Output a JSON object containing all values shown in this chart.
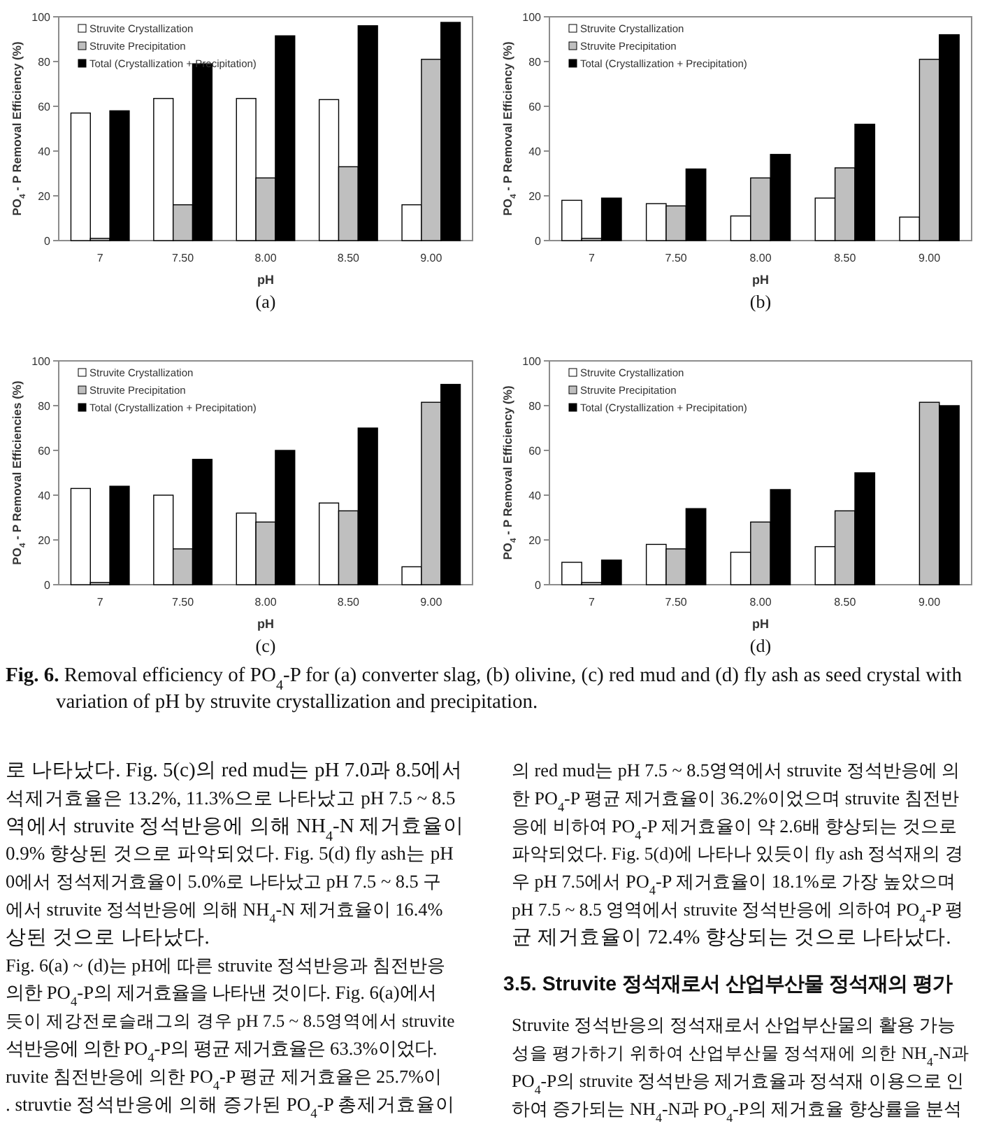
{
  "chart_data": [
    {
      "type": "bar",
      "xlabel": "pH",
      "ylabel": "PO$_{4}$ - P Removal Efficiency (%)",
      "categories": [
        "7",
        "7.50",
        "8.00",
        "8.50",
        "9.00"
      ],
      "ylim": [
        0,
        100
      ],
      "yticks": [
        0,
        20,
        40,
        60,
        80,
        100
      ],
      "legend": "top left",
      "annotations": [
        "(a)"
      ],
      "series": [
        {
          "name": "Struvite Crystallization",
          "color": "#ffffff",
          "values": [
            57,
            63.5,
            63.5,
            63,
            16
          ]
        },
        {
          "name": "Struvite Precipitation",
          "color": "#bfbfbf",
          "values": [
            1,
            16,
            28,
            33,
            81
          ]
        },
        {
          "name": "Total (Crystallization + Precipitation)",
          "color": "#000000",
          "values": [
            58,
            79,
            91.5,
            96,
            97.5
          ]
        }
      ]
    },
    {
      "type": "bar",
      "xlabel": "pH",
      "ylabel": "PO$_{4}$ - P Removal Efficiency (%)",
      "categories": [
        "7",
        "7.50",
        "8.00",
        "8.50",
        "9.00"
      ],
      "ylim": [
        0,
        100
      ],
      "yticks": [
        0,
        20,
        40,
        60,
        80,
        100
      ],
      "legend": "top left",
      "annotations": [
        "(b)"
      ],
      "series": [
        {
          "name": "Struvite Crystallization",
          "color": "#ffffff",
          "values": [
            18,
            16.5,
            11,
            19,
            10.5
          ]
        },
        {
          "name": "Struvite Precipitation",
          "color": "#bfbfbf",
          "values": [
            1,
            15.5,
            28,
            32.5,
            81
          ]
        },
        {
          "name": "Total (Crystallization + Precipitation)",
          "color": "#000000",
          "values": [
            19,
            32,
            38.5,
            52,
            92
          ]
        }
      ]
    },
    {
      "type": "bar",
      "xlabel": "pH",
      "ylabel": "PO$_{4}$ - P Removal Efficiencies (%)",
      "categories": [
        "7",
        "7.50",
        "8.00",
        "8.50",
        "9.00"
      ],
      "ylim": [
        0,
        100
      ],
      "yticks": [
        0,
        20,
        40,
        60,
        80,
        100
      ],
      "legend": "top left",
      "annotations": [
        "(c)"
      ],
      "series": [
        {
          "name": "Struvite Crystallization",
          "color": "#ffffff",
          "values": [
            43,
            40,
            32,
            36.5,
            8
          ]
        },
        {
          "name": "Struvite Precipitation",
          "color": "#bfbfbf",
          "values": [
            1,
            16,
            28,
            33,
            81.5
          ]
        },
        {
          "name": "Total (Crystallization + Precipitation)",
          "color": "#000000",
          "values": [
            44,
            56,
            60,
            70,
            89.5
          ]
        }
      ]
    },
    {
      "type": "bar",
      "xlabel": "pH",
      "ylabel": "PO$_{4}$ - P Removal Efficiency (%)",
      "categories": [
        "7",
        "7.50",
        "8.00",
        "8.50",
        "9.00"
      ],
      "ylim": [
        0,
        100
      ],
      "yticks": [
        0,
        20,
        40,
        60,
        80,
        100
      ],
      "legend": "top left",
      "annotations": [
        "(d)"
      ],
      "series": [
        {
          "name": "Struvite Crystallization",
          "color": "#ffffff",
          "values": [
            10,
            18,
            14.5,
            17,
            0
          ]
        },
        {
          "name": "Struvite Precipitation",
          "color": "#bfbfbf",
          "values": [
            1,
            16,
            28,
            33,
            81.5
          ]
        },
        {
          "name": "Total (Crystallization + Precipitation)",
          "color": "#000000",
          "values": [
            11,
            34,
            42.5,
            50,
            80
          ]
        }
      ]
    },
    {
      "type": "other",
      "annotations": [
        "**Fig. 6.** Removal efficiency of PO$_{4}$-P for (a) converter slag, (b) olivine, (c) red mud and (d) fly ash as seed crystal with",
        "variation of pH by struvite crystallization and precipitation."
      ]
    },
    {
      "type": "other",
      "annotations": [
        "로 나타났다. Fig. 5(c)의 red mud는 pH 7.0과 8.5에서",
        "석제거효율은 13.2%, 11.3%으로 나타났고 pH 7.5 ~ 8.5",
        "역에서 struvite 정석반응에 의해 NH$_{4}$-N 제거효율이",
        "0.9% 향상된 것으로 파악되었다. Fig. 5(d) fly ash는 pH",
        "0에서 정석제거효율이 5.0%로 나타났고 pH 7.5 ~ 8.5 구",
        "에서 struvite 정석반응에 의해 NH$_{4}$-N 제거효율이 16.4%",
        "상된 것으로 나타났다.",
        "Fig. 6(a) ~ (d)는 pH에 따른 struvite 정석반응과 침전반응",
        "의한 PO$_{4}$-P의 제거효율을 나타낸 것이다. Fig. 6(a)에서",
        "듯이 제강전로슬래그의 경우 pH 7.5 ~ 8.5영역에서 struvite",
        "석반응에 의한 PO$_{4}$-P의 평균 제거효율은 63.3%이었다.",
        "ruvite 침전반응에 의한 PO$_{4}$-P 평균 제거효율은 25.7%이",
        ". struvtie 정석반응에 의해 증가된 PO$_{4}$-P 총제거효율이"
      ]
    },
    {
      "type": "other",
      "annotations": [
        "의 red mud는 pH 7.5 ~ 8.5영역에서 struvite 정석반응에 의",
        "한 PO$_{4}$-P 평균 제거효율이 36.2%이었으며 struvite 침전반",
        "응에 비하여 PO$_{4}$-P 제거효율이 약 2.6배 향상되는 것으로",
        "파악되었다. Fig. 5(d)에 나타나 있듯이 fly ash 정석재의 경",
        "우 pH 7.5에서 PO$_{4}$-P 제거효율이 18.1%로 가장 높았으며",
        "pH 7.5 ~ 8.5 영역에서 struvite 정석반응에 의하여 PO$_{4}$-P 평",
        "균 제거효율이 72.4% 향상되는 것으로 나타났다."
      ]
    },
    {
      "type": "other",
      "title": "3.5. Struvite 정석재로서 산업부산물 정석재의 평가",
      "annotations": [
        "Struvite 정석반응의 정석재로서 산업부산물의 활용 가능",
        "성을 평가하기 위하여 산업부산물 정석재에 의한 NH$_{4}$-N과",
        "PO$_{4}$-P의 struvite 정석반응 제거효율과 정석재 이용으로 인",
        "하여 증가되는 NH$_{4}$-N과 PO$_{4}$-P의 제거효율 향상률을 분석"
      ]
    }
  ]
}
